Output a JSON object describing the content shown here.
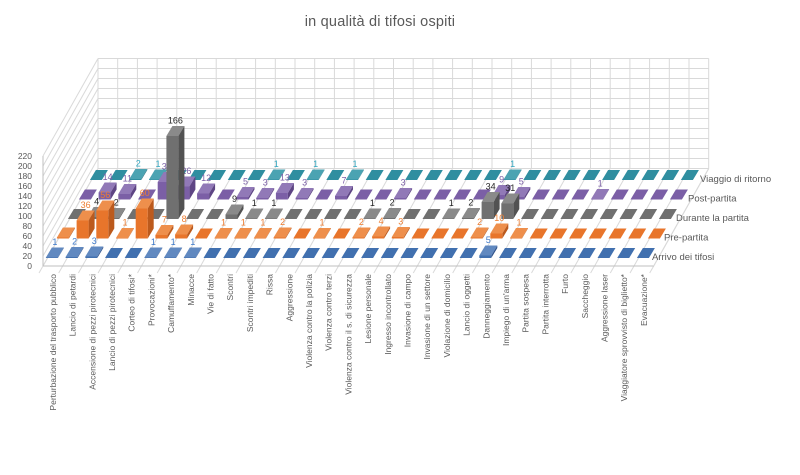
{
  "chart_data": {
    "type": "bar",
    "projection": "3d",
    "title": "in qualità di tifosi ospiti",
    "categories": [
      "Perturbazione del trasporto pubblico",
      "Lancio di petardi",
      "Accensione di pezzi pirotecnici",
      "Lancio di pezzi pirotecnici",
      "Corteo di tifosi*",
      "Provocazioni*",
      "Camuffamento*",
      "Minacce",
      "Vie di fatto",
      "Scontri",
      "Scontri impediti",
      "Rissa",
      "Aggressione",
      "Violenza contro la polizia",
      "Violenza contro terzi",
      "Violenza contro il s. di sicurezza",
      "Lesione personale",
      "Ingresso incontrollato",
      "Invasione di campo",
      "Invasione di un settore",
      "Violazione di domicilio",
      "Lancio di oggetti",
      "Danneggiamento",
      "Impiego di un'arma",
      "Partita sospesa",
      "Partita interrotta",
      "Furto",
      "Saccheggio",
      "Aggressione laser",
      "Viaggiatore sprovvisto di biglietto*",
      "Evacuazione*"
    ],
    "series": [
      {
        "name": "Arrivo dei tifosi",
        "color": "#4170AF",
        "color_top": "#6189C0",
        "color_side": "#30538C",
        "label_color": "#3E79C8",
        "values": [
          1,
          2,
          3,
          0,
          0,
          1,
          1,
          1,
          0,
          0,
          0,
          0,
          0,
          0,
          0,
          0,
          0,
          0,
          0,
          0,
          0,
          0,
          5,
          0,
          0,
          0,
          0,
          0,
          0,
          0,
          0
        ]
      },
      {
        "name": "Pre-partita",
        "color": "#E8752B",
        "color_top": "#EE8F4C",
        "color_side": "#BC5A1D",
        "label_color": "#ED7D31",
        "values": [
          2,
          36,
          56,
          1,
          60,
          7,
          8,
          0,
          1,
          1,
          1,
          2,
          0,
          1,
          0,
          2,
          4,
          3,
          0,
          0,
          0,
          2,
          10,
          1,
          0,
          0,
          0,
          0,
          0,
          0,
          0
        ],
        "unlabeled_indexes": [
          0
        ]
      },
      {
        "name": "Durante la partita",
        "color": "#707070",
        "color_top": "#8A8A8A",
        "color_side": "#525252",
        "label_color": "#262626",
        "values": [
          0,
          4,
          2,
          0,
          0,
          166,
          0,
          0,
          9,
          1,
          1,
          0,
          0,
          0,
          0,
          1,
          2,
          0,
          0,
          1,
          2,
          34,
          31,
          0,
          0,
          0,
          0,
          0,
          0,
          0,
          0
        ]
      },
      {
        "name": "Post-partita",
        "color": "#7B5FA6",
        "color_top": "#9179B7",
        "color_side": "#5E4584",
        "label_color": "#7B5FA6",
        "values": [
          0,
          14,
          11,
          0,
          35,
          26,
          12,
          0,
          5,
          3,
          13,
          3,
          0,
          7,
          0,
          0,
          3,
          0,
          0,
          0,
          0,
          9,
          5,
          0,
          0,
          0,
          1,
          0,
          0,
          0,
          0
        ]
      },
      {
        "name": "Viaggio di ritorno",
        "color": "#2F8EA0",
        "color_top": "#4BA3B2",
        "color_side": "#226D7D",
        "label_color": "#35A7C0",
        "values": [
          0,
          0,
          2,
          1,
          0,
          0,
          0,
          0,
          0,
          1,
          0,
          1,
          0,
          1,
          0,
          0,
          0,
          0,
          0,
          0,
          0,
          1,
          0,
          0,
          0,
          0,
          0,
          0,
          0,
          0,
          0
        ]
      }
    ],
    "y_axis": {
      "min": 0,
      "max": 220,
      "step": 20,
      "tick_labels": [
        "0",
        "20",
        "40",
        "60",
        "80",
        "100",
        "120",
        "140",
        "160",
        "180",
        "200",
        "220"
      ]
    },
    "axis_label_color": "#595959",
    "gridline_color": "#D9D9D9",
    "edge_color": "#BFBFBF",
    "legend_position": "right-depth-axis",
    "grid": "on"
  }
}
